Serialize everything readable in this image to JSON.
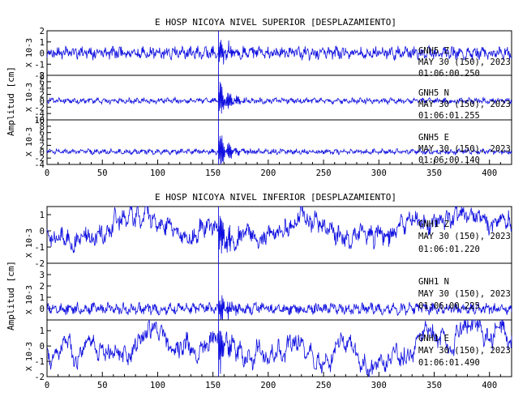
{
  "line_color": "#1010e0",
  "chart_data": [
    {
      "type": "line",
      "title": "E HOSP NICOYA NIVEL SUPERIOR [DESPLAZAMIENTO]",
      "ylabel": "Amplitud [cm]",
      "xticks": [
        "0",
        "50",
        "100",
        "150",
        "200",
        "250",
        "300",
        "350",
        "400"
      ],
      "xlim": [
        0,
        420
      ],
      "event_time": 155,
      "traces": [
        {
          "label_lines": [
            "GNH5   Z",
            "MAY 30 (150), 2023",
            "01:06:00.250"
          ],
          "scale_label": "X 10-3",
          "ylim": [
            -2,
            2
          ],
          "yticks": [
            "2",
            "1",
            "0",
            "-1",
            "-2"
          ],
          "base_amp": 0.55,
          "burst_amp": 1.6,
          "seed": 11,
          "drift": 0.0
        },
        {
          "label_lines": [
            "GNH5   N",
            "MAY 30 (150), 2023",
            "01:06:01.255"
          ],
          "scale_label": "X 10-3",
          "ylim": [
            -6,
            8
          ],
          "yticks": [
            "8",
            "6",
            "4",
            "2",
            "0",
            "-2",
            "-4",
            "-6"
          ],
          "base_amp": 0.9,
          "burst_amp": 6.5,
          "seed": 23,
          "drift": 0.0
        },
        {
          "label_lines": [
            "GNH5   E",
            "MAY 30 (150), 2023",
            "01:06:00.140"
          ],
          "scale_label": "X 10-3",
          "ylim": [
            -4,
            10
          ],
          "yticks": [
            "10",
            "8",
            "6",
            "4",
            "2",
            "0",
            "-2",
            "-4"
          ],
          "base_amp": 0.8,
          "burst_amp": 7.0,
          "seed": 37,
          "drift": 0.0
        }
      ]
    },
    {
      "type": "line",
      "title": "E HOSP NICOYA NIVEL INFERIOR [DESPLAZAMIENTO]",
      "ylabel": "Amplitud [cm]",
      "xticks": [
        "0",
        "50",
        "100",
        "150",
        "200",
        "250",
        "300",
        "350",
        "400"
      ],
      "xlim": [
        0,
        420
      ],
      "event_time": 155,
      "traces": [
        {
          "label_lines": [
            "GNH1   Z",
            "MAY 30 (150), 2023",
            "01:06:01.220"
          ],
          "scale_label": "X 10-3",
          "ylim": [
            -2,
            1.5
          ],
          "yticks": [
            "1",
            "0",
            "-1",
            "-2"
          ],
          "base_amp": 0.55,
          "burst_amp": 1.4,
          "seed": 53,
          "drift": 0.35
        },
        {
          "label_lines": [
            "GNH1   N",
            "MAY 30 (150), 2023",
            "01:06:00.225"
          ],
          "scale_label": "X 10-3",
          "ylim": [
            -1,
            4
          ],
          "yticks": [
            "3",
            "2",
            "1",
            "0"
          ],
          "base_amp": 0.5,
          "burst_amp": 1.8,
          "seed": 71,
          "drift": 0.0
        },
        {
          "label_lines": [
            "GNH1   E",
            "MAY 30 (150), 2023",
            "01:06:01.490"
          ],
          "scale_label": "X 10-3",
          "ylim": [
            -2,
            1.7
          ],
          "yticks": [
            "1",
            "0",
            "-1",
            "-2"
          ],
          "base_amp": 0.5,
          "burst_amp": 1.6,
          "seed": 89,
          "drift": 0.6
        }
      ]
    }
  ]
}
